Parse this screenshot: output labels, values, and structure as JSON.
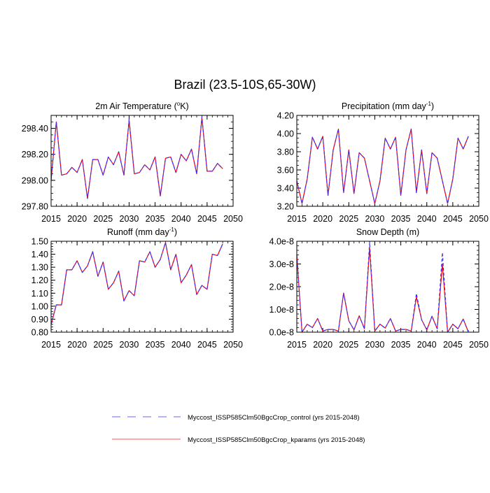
{
  "title": "Brazil (23.5-10S,65-30W)",
  "colors": {
    "control": "#3333ff",
    "kparams": "#ff0000"
  },
  "legend": [
    {
      "label": "Myccost_ISSP585Clm50BgcCrop_control (yrs 2015-2048)",
      "color": "#6666ff",
      "style": "dashed"
    },
    {
      "label": "Myccost_ISSP585Clm50BgcCrop_kparams (yrs 2015-2048)",
      "color": "#ff5555",
      "style": "solid"
    }
  ],
  "chart_data": [
    {
      "type": "line",
      "title_main": "2m Air Temperature (",
      "title_sup": "o",
      "title_end": "K)",
      "xlim": [
        2015,
        2050
      ],
      "xticks": [
        "2015",
        "2020",
        "2025",
        "2030",
        "2035",
        "2040",
        "2045",
        "2050"
      ],
      "ylim": [
        297.8,
        298.5
      ],
      "yticks": [
        297.8,
        298.0,
        298.2,
        298.4
      ],
      "ytick_labels": [
        "297.80",
        "298.00",
        "298.20",
        "298.40"
      ],
      "yminor": 0.05,
      "x": [
        2015,
        2016,
        2017,
        2018,
        2019,
        2020,
        2021,
        2022,
        2023,
        2024,
        2025,
        2026,
        2027,
        2028,
        2029,
        2030,
        2031,
        2032,
        2033,
        2034,
        2035,
        2036,
        2037,
        2038,
        2039,
        2040,
        2041,
        2042,
        2043,
        2044,
        2045,
        2046,
        2047,
        2048
      ],
      "series": [
        {
          "name": "control",
          "values": [
            298.0,
            298.45,
            298.04,
            298.05,
            298.1,
            298.06,
            298.16,
            297.86,
            298.16,
            298.16,
            298.04,
            298.18,
            298.12,
            298.22,
            298.04,
            298.47,
            298.05,
            298.06,
            298.12,
            298.08,
            298.18,
            297.88,
            298.17,
            298.18,
            298.06,
            298.2,
            298.15,
            298.24,
            298.05,
            298.49,
            298.07,
            298.07,
            298.13,
            298.09
          ]
        },
        {
          "name": "kparams",
          "values": [
            298.0,
            298.45,
            298.04,
            298.05,
            298.1,
            298.06,
            298.16,
            297.86,
            298.16,
            298.16,
            298.04,
            298.18,
            298.12,
            298.22,
            298.04,
            298.46,
            298.05,
            298.06,
            298.12,
            298.08,
            298.18,
            297.88,
            298.17,
            298.18,
            298.06,
            298.2,
            298.15,
            298.24,
            298.05,
            298.48,
            298.07,
            298.07,
            298.13,
            298.09
          ]
        }
      ]
    },
    {
      "type": "line",
      "title_main": "Precipitation (mm day",
      "title_sup": "-1",
      "title_end": ")",
      "xlim": [
        2015,
        2050
      ],
      "xticks": [
        "2015",
        "2020",
        "2025",
        "2030",
        "2035",
        "2040",
        "2045",
        "2050"
      ],
      "ylim": [
        3.2,
        4.2
      ],
      "yticks": [
        3.2,
        3.4,
        3.6,
        3.8,
        4.0,
        4.2
      ],
      "ytick_labels": [
        "3.20",
        "3.40",
        "3.60",
        "3.80",
        "4.00",
        "4.20"
      ],
      "yminor": 0.05,
      "x": [
        2015,
        2016,
        2017,
        2018,
        2019,
        2020,
        2021,
        2022,
        2023,
        2024,
        2025,
        2026,
        2027,
        2028,
        2029,
        2030,
        2031,
        2032,
        2033,
        2034,
        2035,
        2036,
        2037,
        2038,
        2039,
        2040,
        2041,
        2042,
        2043,
        2044,
        2045,
        2046,
        2047,
        2048
      ],
      "series": [
        {
          "name": "control",
          "values": [
            3.48,
            3.23,
            3.5,
            3.96,
            3.83,
            3.97,
            3.32,
            3.82,
            4.05,
            3.35,
            3.82,
            3.34,
            3.79,
            3.73,
            3.48,
            3.23,
            3.48,
            3.95,
            3.83,
            3.96,
            3.32,
            3.82,
            4.05,
            3.35,
            3.82,
            3.34,
            3.79,
            3.73,
            3.48,
            3.23,
            3.5,
            3.95,
            3.83,
            3.97
          ]
        },
        {
          "name": "kparams",
          "values": [
            3.48,
            3.23,
            3.5,
            3.96,
            3.83,
            3.97,
            3.32,
            3.82,
            4.05,
            3.35,
            3.82,
            3.34,
            3.79,
            3.73,
            3.48,
            3.23,
            3.48,
            3.95,
            3.83,
            3.96,
            3.32,
            3.82,
            4.05,
            3.35,
            3.82,
            3.34,
            3.79,
            3.73,
            3.48,
            3.23,
            3.5,
            3.95,
            3.83,
            3.97
          ]
        }
      ]
    },
    {
      "type": "line",
      "title_main": "Runoff (mm day",
      "title_sup": "-1",
      "title_end": ")",
      "xlim": [
        2015,
        2050
      ],
      "xticks": [
        "2015",
        "2020",
        "2025",
        "2030",
        "2035",
        "2040",
        "2045",
        "2050"
      ],
      "ylim": [
        0.8,
        1.5
      ],
      "yticks": [
        0.8,
        0.9,
        1.0,
        1.1,
        1.2,
        1.3,
        1.4,
        1.5
      ],
      "ytick_labels": [
        "0.80",
        "0.90",
        "1.00",
        "1.10",
        "1.20",
        "1.30",
        "1.40",
        "1.50"
      ],
      "yminor": 0.02,
      "x": [
        2015,
        2016,
        2017,
        2018,
        2019,
        2020,
        2021,
        2022,
        2023,
        2024,
        2025,
        2026,
        2027,
        2028,
        2029,
        2030,
        2031,
        2032,
        2033,
        2034,
        2035,
        2036,
        2037,
        2038,
        2039,
        2040,
        2041,
        2042,
        2043,
        2044,
        2045,
        2046,
        2047,
        2048
      ],
      "series": [
        {
          "name": "control",
          "values": [
            0.86,
            1.01,
            1.01,
            1.28,
            1.28,
            1.35,
            1.26,
            1.31,
            1.42,
            1.23,
            1.34,
            1.13,
            1.18,
            1.27,
            1.04,
            1.12,
            1.08,
            1.35,
            1.34,
            1.42,
            1.3,
            1.36,
            1.49,
            1.28,
            1.4,
            1.18,
            1.24,
            1.32,
            1.09,
            1.16,
            1.13,
            1.4,
            1.39,
            1.48
          ]
        },
        {
          "name": "kparams",
          "values": [
            0.86,
            1.01,
            1.01,
            1.28,
            1.28,
            1.35,
            1.26,
            1.31,
            1.42,
            1.23,
            1.34,
            1.13,
            1.18,
            1.27,
            1.04,
            1.12,
            1.08,
            1.35,
            1.34,
            1.42,
            1.3,
            1.36,
            1.49,
            1.28,
            1.4,
            1.18,
            1.24,
            1.32,
            1.09,
            1.16,
            1.13,
            1.4,
            1.39,
            1.48
          ]
        }
      ]
    },
    {
      "type": "line",
      "title_main": "Snow Depth (m)",
      "title_sup": "",
      "title_end": "",
      "xlim": [
        2015,
        2050
      ],
      "xticks": [
        "2015",
        "2020",
        "2025",
        "2030",
        "2035",
        "2040",
        "2045",
        "2050"
      ],
      "ylim": [
        0,
        4e-08
      ],
      "yticks": [
        0,
        1e-08,
        2e-08,
        3e-08,
        4e-08
      ],
      "ytick_labels": [
        "0.0e-8",
        "1.0e-8",
        "2.0e-8",
        "3.0e-8",
        "4.0e-8"
      ],
      "yminor": 2e-09,
      "x": [
        2015,
        2016,
        2017,
        2018,
        2019,
        2020,
        2021,
        2022,
        2023,
        2024,
        2025,
        2026,
        2027,
        2028,
        2029,
        2030,
        2031,
        2032,
        2033,
        2034,
        2035,
        2036,
        2037,
        2038,
        2039,
        2040,
        2041,
        2042,
        2043,
        2044,
        2045,
        2046,
        2047,
        2048
      ],
      "series": [
        {
          "name": "control",
          "values": [
            3.4e-08,
            0,
            3.5e-09,
            2e-09,
            6e-09,
            5e-10,
            1.2e-09,
            1.2e-09,
            5e-10,
            1.72e-08,
            5e-09,
            1e-09,
            7.2e-09,
            1.5e-09,
            3.95e-08,
            5e-10,
            3.5e-09,
            1.8e-09,
            6e-09,
            5e-10,
            1.2e-09,
            1.2e-09,
            5e-10,
            1.7e-08,
            5.5e-09,
            1e-09,
            7e-09,
            1.5e-09,
            3.5e-08,
            0,
            3.5e-09,
            1.5e-09,
            5.8e-09,
            0
          ]
        },
        {
          "name": "kparams",
          "values": [
            3.4e-08,
            0,
            3.5e-09,
            2e-09,
            6e-09,
            5e-10,
            1.2e-09,
            1.2e-09,
            5e-10,
            1.72e-08,
            5e-09,
            1e-09,
            7.2e-09,
            1.5e-09,
            3.7e-08,
            5e-10,
            3.5e-09,
            1.8e-09,
            6e-09,
            5e-10,
            1.2e-09,
            1.2e-09,
            5e-10,
            1.55e-08,
            5.5e-09,
            1e-09,
            7e-09,
            1.5e-09,
            3e-08,
            0,
            3.5e-09,
            1.5e-09,
            5.8e-09,
            0
          ]
        }
      ]
    }
  ]
}
